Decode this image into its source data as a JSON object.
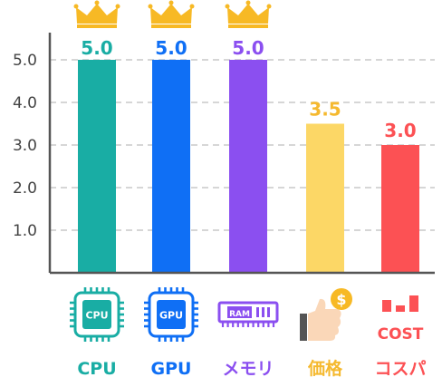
{
  "chart_data": {
    "type": "bar",
    "categories": [
      "CPU",
      "GPU",
      "メモリ",
      "価格",
      "コスパ"
    ],
    "values": [
      5.0,
      5.0,
      5.0,
      3.5,
      3.0
    ],
    "value_labels": [
      "5.0",
      "5.0",
      "5.0",
      "3.5",
      "3.0"
    ],
    "y_ticks": [
      "1.0",
      "2.0",
      "3.0",
      "4.0",
      "5.0"
    ],
    "ylim": [
      0,
      5
    ],
    "grid": true,
    "colors": [
      "#19ada4",
      "#0f6ff5",
      "#8b4ff0",
      "#fcd766",
      "#fc5154"
    ],
    "label_colors": [
      "#19ada4",
      "#0f6ff5",
      "#8b4ff0",
      "#f5b92f",
      "#fc5154"
    ],
    "crowned": [
      true,
      true,
      true,
      false,
      false
    ],
    "crown_color": "#f7b925",
    "icons": [
      "cpu-chip-icon",
      "gpu-chip-icon",
      "ram-module-icon",
      "thumbs-up-coin-icon",
      "cost-chart-icon"
    ],
    "icon_texts": {
      "cpu": "CPU",
      "gpu": "GPU",
      "ram": "RAM",
      "coin": "$",
      "cost": "COST"
    }
  }
}
